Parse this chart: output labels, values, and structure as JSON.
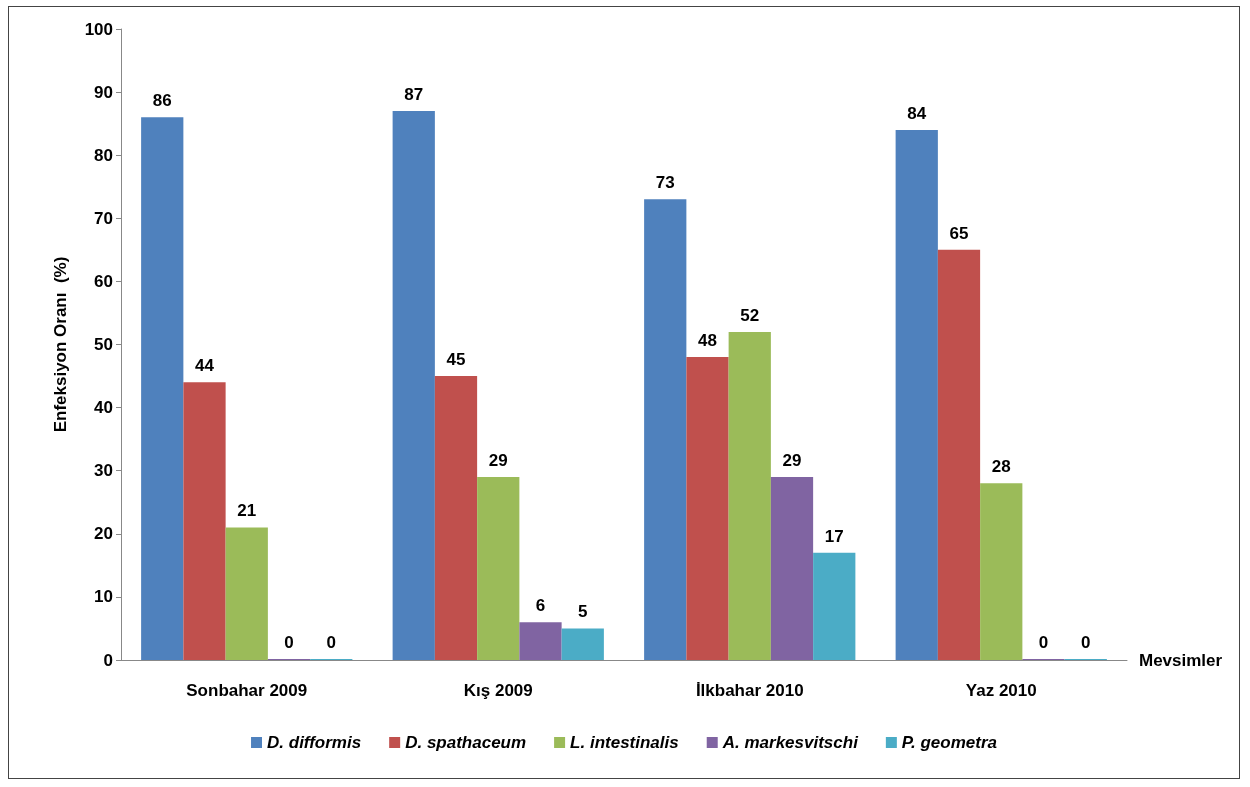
{
  "chart_data": {
    "type": "bar",
    "xlabel": "Mevsimler",
    "ylabel": "Enfeksiyon Oranı  (%)",
    "categories": [
      "Sonbahar 2009",
      "Kış 2009",
      "İlkbahar 2010",
      "Yaz 2010"
    ],
    "series": [
      {
        "name": "D. difformis",
        "color": "#4f81bd",
        "values": [
          86,
          87,
          73,
          84
        ]
      },
      {
        "name": "D. spathaceum",
        "color": "#c0504d",
        "values": [
          44,
          45,
          48,
          65
        ]
      },
      {
        "name": "L. intestinalis",
        "color": "#9bbb59",
        "values": [
          21,
          29,
          52,
          28
        ]
      },
      {
        "name": "A. markesvitschi",
        "color": "#8064a2",
        "values": [
          0,
          6,
          29,
          0
        ]
      },
      {
        "name": "P. geometra",
        "color": "#4bacc6",
        "values": [
          0,
          5,
          17,
          0
        ]
      }
    ],
    "ylim": [
      0,
      100
    ],
    "yticks": [
      0,
      10,
      20,
      30,
      40,
      50,
      60,
      70,
      80,
      90,
      100
    ],
    "grid": false,
    "legend": "bottom",
    "data_labels": true
  }
}
